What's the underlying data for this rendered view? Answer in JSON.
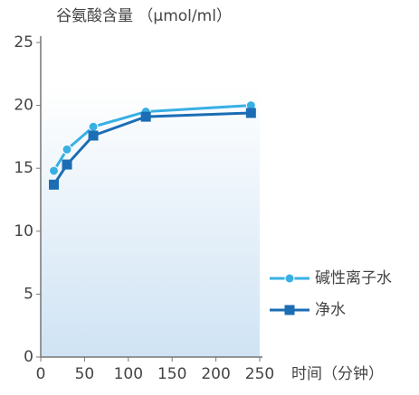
{
  "chart_data": {
    "type": "line",
    "y_label": "谷氨酸含量 （μmol/ml）",
    "x_label": "时间（分钟）",
    "x": [
      15,
      30,
      60,
      120,
      240
    ],
    "series": [
      {
        "name": "碱性离子水",
        "color": "#38b0e4",
        "marker": "circle",
        "values": [
          14.8,
          16.5,
          18.3,
          19.5,
          20.0
        ]
      },
      {
        "name": "净水",
        "color": "#1b6db4",
        "marker": "square",
        "values": [
          13.7,
          15.3,
          17.6,
          19.1,
          19.4
        ]
      }
    ],
    "xlim": [
      0,
      250
    ],
    "xticks": [
      0,
      50,
      100,
      150,
      200,
      250
    ],
    "ylim": [
      0,
      25
    ],
    "yticks": [
      0,
      5,
      10,
      15,
      20,
      25
    ]
  }
}
